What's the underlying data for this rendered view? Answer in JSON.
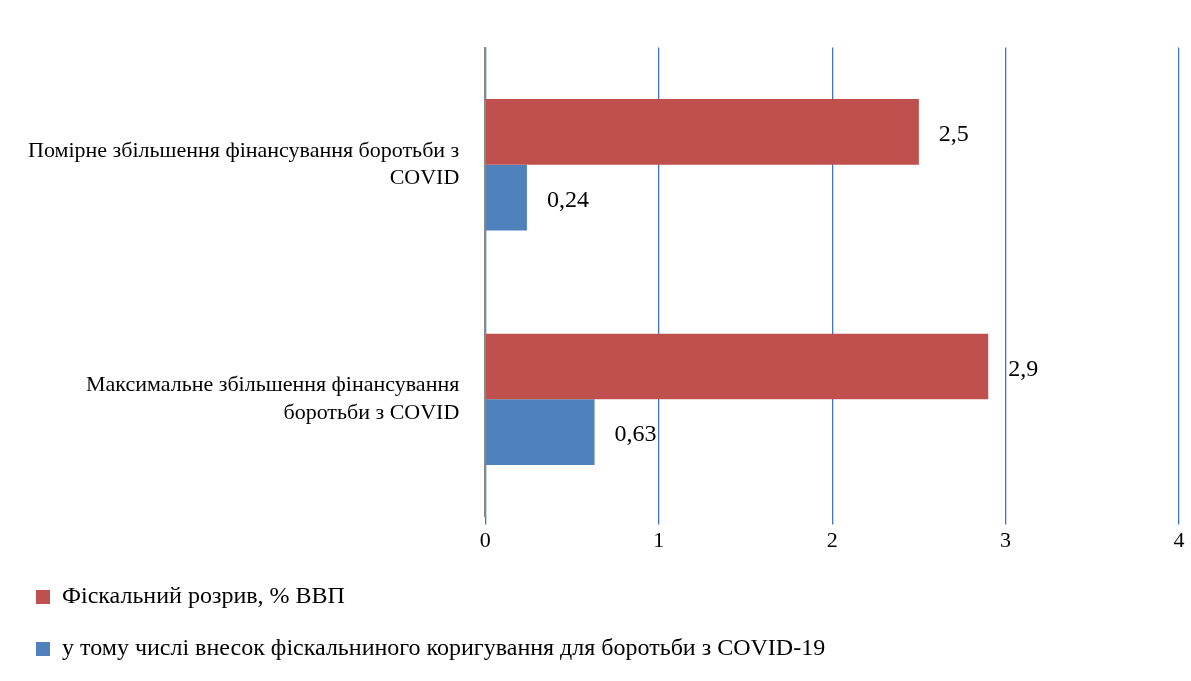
{
  "chart_data": {
    "type": "bar",
    "orientation": "horizontal",
    "categories": [
      "Помірне збільшення фінансування боротьби з COVID",
      "Максимальне збільшення фінансування боротьби з COVID"
    ],
    "series": [
      {
        "name": "Фіскальний розрив, % ВВП",
        "color": "#c0504d",
        "values": [
          2.5,
          2.9
        ],
        "value_labels": [
          "2,5",
          "2,9"
        ]
      },
      {
        "name": "у тому числі внесок фіскальниного коригування для боротьби з COVID-19",
        "color": "#4f81bd",
        "values": [
          0.24,
          0.63
        ],
        "value_labels": [
          "0,24",
          "0,63"
        ]
      }
    ],
    "xlim": [
      0,
      4
    ],
    "xticks": [
      0,
      1,
      2,
      3,
      4
    ],
    "grid": "x",
    "legend": "bottom"
  }
}
